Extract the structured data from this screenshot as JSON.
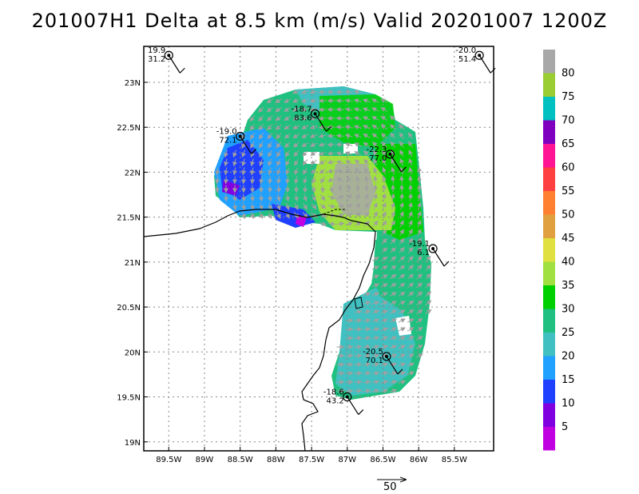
{
  "title": "201007H1 Delta at 8.5 km (m/s) Valid 20201007  1200Z",
  "x_ticks": [
    "89.5W",
    "89W",
    "88.5W",
    "88W",
    "87.5W",
    "87W",
    "86.5W",
    "86W",
    "85.5W"
  ],
  "y_ticks": [
    "23N",
    "22.5N",
    "22N",
    "21.5N",
    "21N",
    "20.5N",
    "20N",
    "19.5N",
    "19N"
  ],
  "colorbar": {
    "labels": [
      "80",
      "75",
      "70",
      "65",
      "60",
      "55",
      "50",
      "45",
      "40",
      "35",
      "30",
      "25",
      "20",
      "15",
      "10",
      "5"
    ],
    "colors": [
      "#a8a8a8",
      "#9acd32",
      "#00c0c0",
      "#8000c0",
      "#ff1493",
      "#ff4040",
      "#ff8030",
      "#e0a040",
      "#e0e040",
      "#a0e040",
      "#00d000",
      "#20c080",
      "#40c0c0",
      "#20a0ff",
      "#2040ff",
      "#8000e0",
      "#c000e0"
    ]
  },
  "dropsondes": [
    {
      "temp": "19.9",
      "speed": "31.2",
      "lon": -89.5,
      "lat": 23.3
    },
    {
      "temp": "-20.0",
      "speed": "51.4",
      "lon": -85.15,
      "lat": 23.3
    },
    {
      "temp": "-18.7",
      "speed": "83.6",
      "lon": -87.45,
      "lat": 22.65
    },
    {
      "temp": "-19.0",
      "speed": "72.1",
      "lon": -88.5,
      "lat": 22.4
    },
    {
      "temp": "-22.3",
      "speed": "77.0",
      "lon": -86.4,
      "lat": 22.2
    },
    {
      "temp": "-19.1",
      "speed": "6.1",
      "lon": -85.8,
      "lat": 21.15
    },
    {
      "temp": "-20.5",
      "speed": "70.1",
      "lon": -86.45,
      "lat": 19.95
    },
    {
      "temp": "-18.6",
      "speed": "43.2",
      "lon": -87.0,
      "lat": 19.5
    }
  ],
  "reference_vector": {
    "label": "50"
  }
}
